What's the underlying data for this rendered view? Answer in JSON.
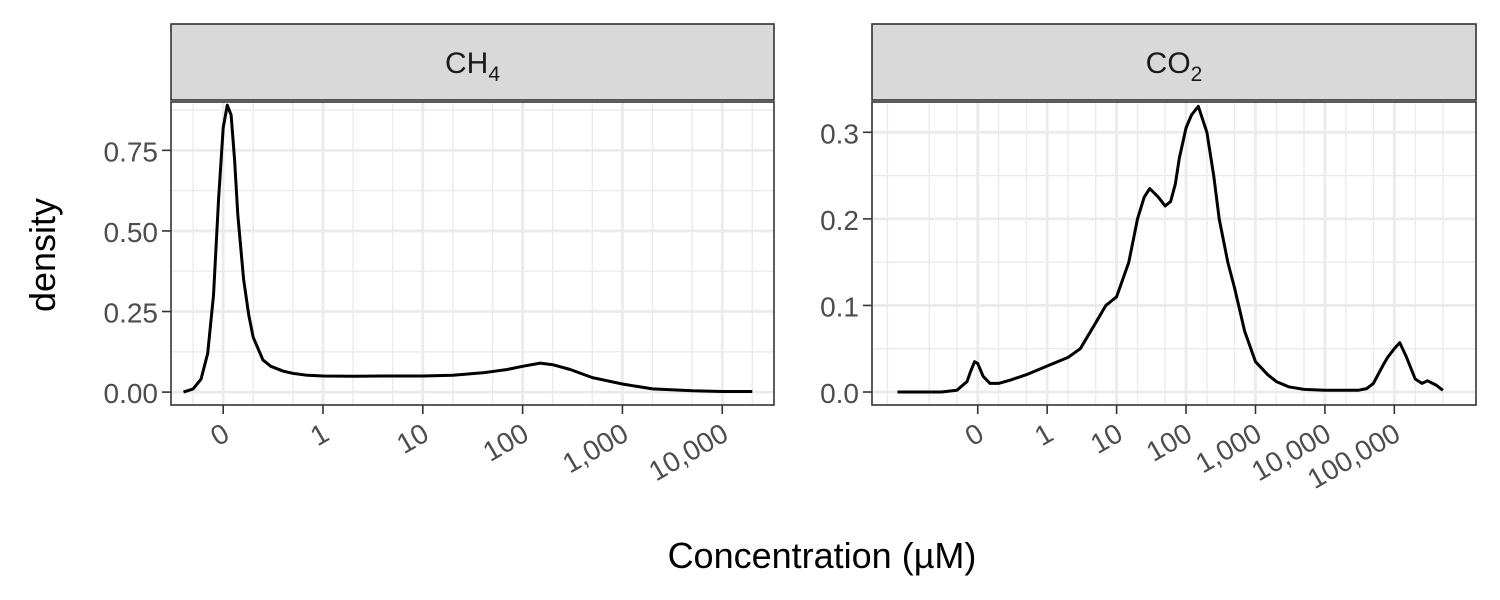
{
  "chart_data": [
    {
      "type": "line",
      "facet_label": "CH",
      "facet_sub": "4",
      "xscale": "log10",
      "xlim": [
        0.03,
        33000
      ],
      "ylim": [
        -0.04,
        0.9
      ],
      "yticks": [
        0.0,
        0.25,
        0.5,
        0.75
      ],
      "ytick_labels": [
        "0.00",
        "0.25",
        "0.50",
        "0.75"
      ],
      "xticks": [
        0.1,
        1,
        10,
        100,
        1000,
        10000
      ],
      "xtick_labels": [
        "0",
        "1",
        "10",
        "100",
        "1,000",
        "10,000"
      ],
      "x": [
        0.04,
        0.05,
        0.06,
        0.07,
        0.08,
        0.09,
        0.1,
        0.11,
        0.12,
        0.13,
        0.14,
        0.16,
        0.18,
        0.2,
        0.25,
        0.3,
        0.4,
        0.5,
        0.7,
        1,
        2,
        4,
        10,
        20,
        40,
        70,
        100,
        150,
        200,
        300,
        500,
        1000,
        2000,
        5000,
        10000,
        20000
      ],
      "y": [
        0.0,
        0.01,
        0.04,
        0.12,
        0.3,
        0.6,
        0.82,
        0.89,
        0.86,
        0.72,
        0.55,
        0.35,
        0.24,
        0.17,
        0.1,
        0.08,
        0.065,
        0.058,
        0.052,
        0.05,
        0.049,
        0.05,
        0.05,
        0.052,
        0.06,
        0.07,
        0.08,
        0.09,
        0.085,
        0.07,
        0.045,
        0.025,
        0.01,
        0.004,
        0.002,
        0.002
      ]
    },
    {
      "type": "line",
      "facet_label": "CO",
      "facet_sub": "2",
      "xscale": "log10",
      "xlim": [
        0.003,
        1500000
      ],
      "ylim": [
        -0.015,
        0.335
      ],
      "yticks": [
        0.0,
        0.1,
        0.2,
        0.3
      ],
      "ytick_labels": [
        "0.0",
        "0.1",
        "0.2",
        "0.3"
      ],
      "xticks": [
        0.1,
        1,
        10,
        100,
        1000,
        10000,
        100000
      ],
      "xtick_labels": [
        "0",
        "1",
        "10",
        "100",
        "1,000",
        "10,000",
        "100,000"
      ],
      "x": [
        0.007,
        0.01,
        0.03,
        0.05,
        0.07,
        0.08,
        0.09,
        0.1,
        0.12,
        0.15,
        0.2,
        0.3,
        0.5,
        1,
        2,
        3,
        5,
        7,
        10,
        15,
        20,
        25,
        30,
        40,
        50,
        60,
        70,
        80,
        100,
        120,
        150,
        200,
        250,
        300,
        400,
        500,
        700,
        1000,
        1500,
        2000,
        3000,
        5000,
        10000,
        20000,
        30000,
        40000,
        50000,
        60000,
        70000,
        80000,
        100000,
        120000,
        150000,
        200000,
        250000,
        300000,
        400000,
        500000
      ],
      "y": [
        0.0,
        0.0,
        0.0,
        0.002,
        0.012,
        0.025,
        0.035,
        0.033,
        0.018,
        0.01,
        0.01,
        0.014,
        0.02,
        0.03,
        0.04,
        0.05,
        0.08,
        0.1,
        0.11,
        0.15,
        0.2,
        0.225,
        0.235,
        0.225,
        0.215,
        0.22,
        0.24,
        0.27,
        0.305,
        0.32,
        0.33,
        0.3,
        0.25,
        0.2,
        0.15,
        0.12,
        0.07,
        0.035,
        0.02,
        0.012,
        0.006,
        0.003,
        0.002,
        0.002,
        0.002,
        0.004,
        0.01,
        0.022,
        0.032,
        0.04,
        0.05,
        0.057,
        0.04,
        0.015,
        0.01,
        0.013,
        0.008,
        0.002
      ]
    }
  ],
  "axes": {
    "ylabel": "density",
    "xlabel": "Concentration (µM)"
  },
  "colors": {
    "panel_border": "#333333",
    "strip_fill": "#d9d9d9",
    "grid": "#ebebeb",
    "line": "#000000",
    "text": "#4d4d4d"
  }
}
